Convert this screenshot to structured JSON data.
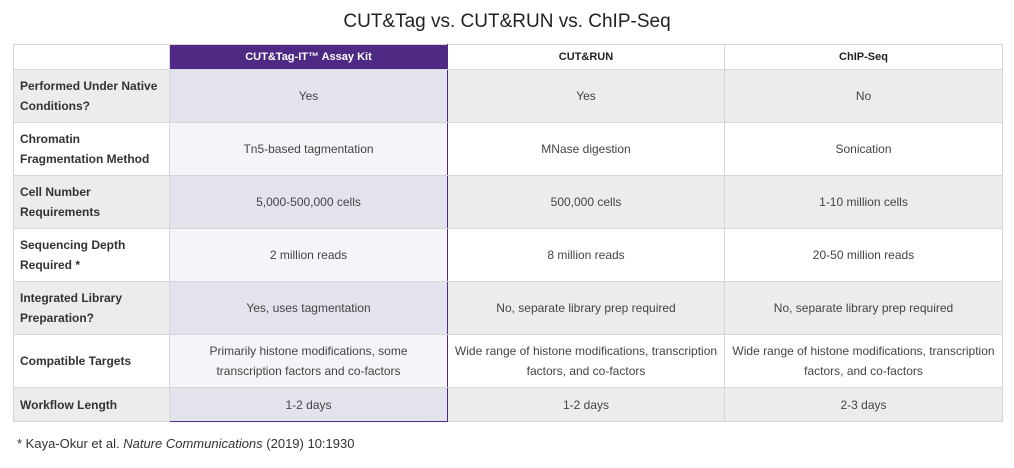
{
  "title": "CUT&Tag vs. CUT&RUN vs. ChIP-Seq",
  "columns": [
    "",
    "CUT&Tag-IT™ Assay Kit",
    "CUT&RUN",
    "ChIP-Seq"
  ],
  "rows": [
    {
      "label": "Performed Under Native Conditions?",
      "values": [
        "Yes",
        "Yes",
        "No"
      ]
    },
    {
      "label": "Chromatin Fragmentation Method",
      "values": [
        "Tn5-based tagmentation",
        "MNase digestion",
        "Sonication"
      ]
    },
    {
      "label": "Cell Number Requirements",
      "values": [
        "5,000-500,000 cells",
        "500,000 cells",
        "1-10 million cells"
      ]
    },
    {
      "label": "Sequencing Depth Required *",
      "values": [
        "2 million reads",
        "8 million reads",
        "20-50 million reads"
      ]
    },
    {
      "label": "Integrated Library Preparation?",
      "values": [
        "Yes, uses tagmentation",
        "No, separate library prep required",
        "No, separate library prep required"
      ]
    },
    {
      "label": "Compatible Targets",
      "values": [
        "Primarily histone modifications, some transcription factors and co-factors",
        "Wide range of histone modifications, transcription factors, and co-factors",
        "Wide range of histone modifications, transcription factors, and co-factors"
      ]
    },
    {
      "label": "Workflow Length",
      "values": [
        "1-2 days",
        "1-2 days",
        "2-3 days"
      ]
    }
  ],
  "footnote": {
    "prefix": "* Kaya-Okur et al. ",
    "journal": "Nature Communications",
    "suffix": " (2019) 10:1930"
  },
  "colors": {
    "highlight_header": "#4e2a84",
    "grey_row": "#ececec",
    "highlight_cell_grey": "#e3e3ee",
    "highlight_cell_white": "#f4f4f9"
  }
}
